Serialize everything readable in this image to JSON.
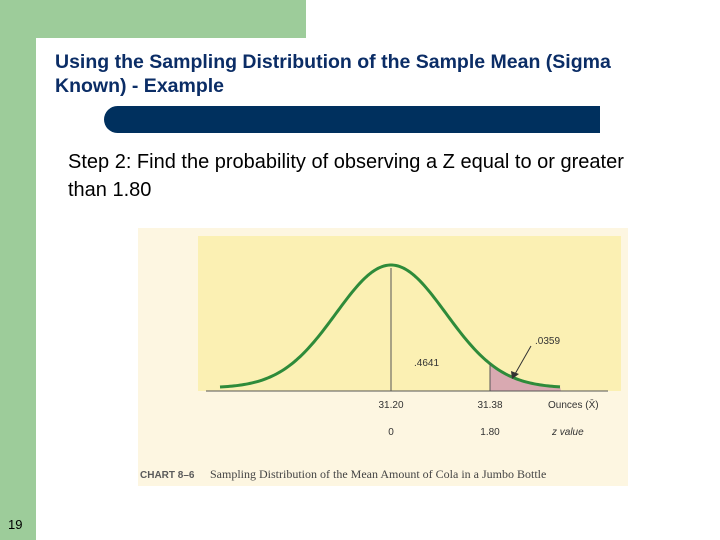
{
  "slide": {
    "title": "Using the Sampling Distribution  of the Sample Mean (Sigma Known) - Example",
    "step": "Step 2:  Find the probability of observing a Z equal to or greater than 1.80",
    "number": "19"
  },
  "figure": {
    "area_center_label": ".4641",
    "area_tail_label": ".0359",
    "x_ticks": [
      "31.20",
      "31.38"
    ],
    "x_axis_label": "Ounces (X̄)",
    "z_ticks": [
      "0",
      "1.80"
    ],
    "z_axis_label": "z value",
    "caption_number": "CHART 8–6",
    "caption_text": "Sampling Distribution of the Mean Amount of Cola in a Jumbo Bottle"
  },
  "colors": {
    "curve": "#2e8b3a",
    "tail_shade": "#d9a9b1",
    "plot_bg": "#fbf0b3",
    "title": "#0b2d66",
    "header_bar": "#00305e"
  }
}
